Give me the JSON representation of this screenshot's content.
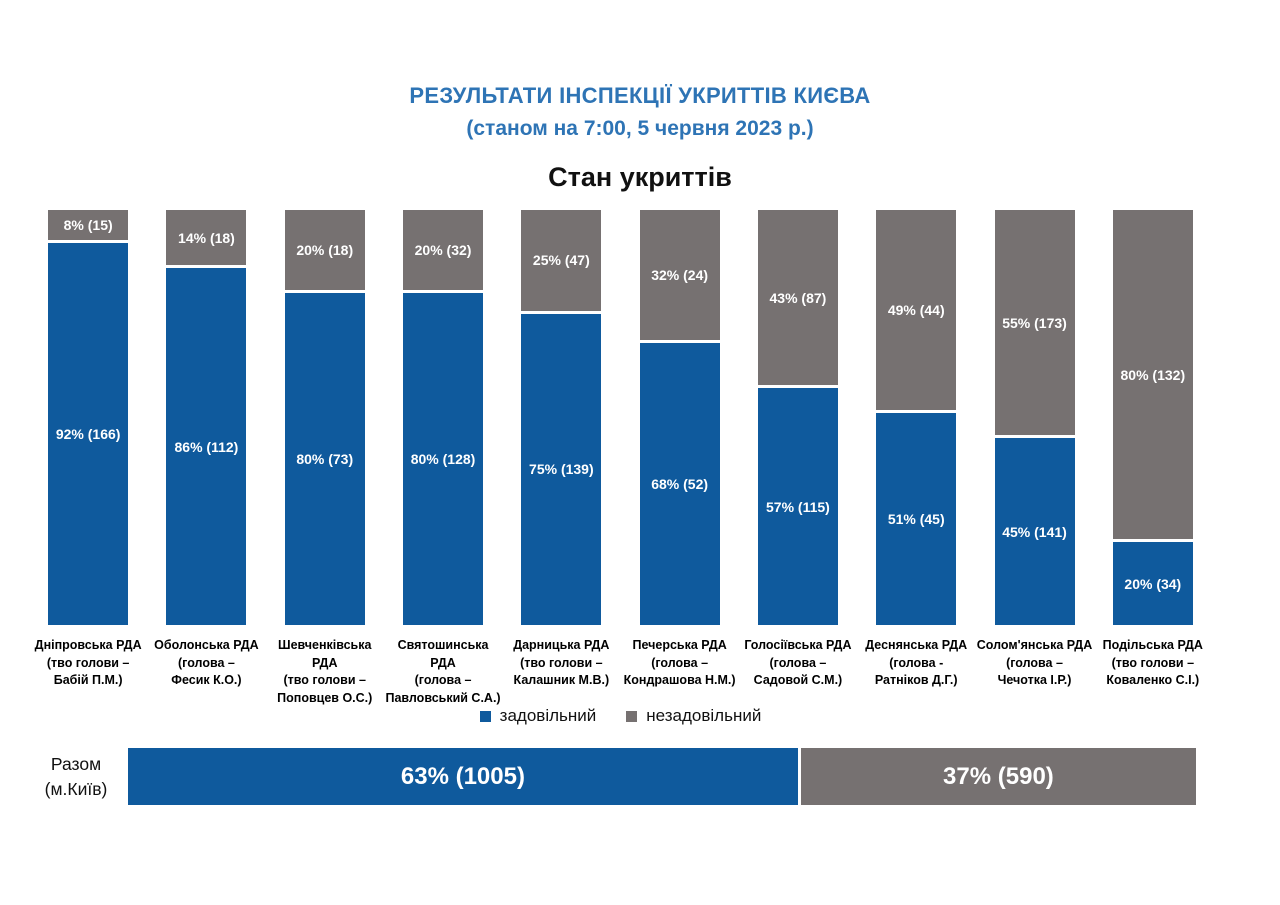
{
  "header": {
    "title": "РЕЗУЛЬТАТИ ІНСПЕКЦІЇ УКРИТТІВ КИЄВА",
    "subtitle": "(станом на 7:00, 5 червня 2023 р.)"
  },
  "chart_data": {
    "type": "bar",
    "variant": "100%-stacked-column",
    "title": "Стан укриттів",
    "grid": false,
    "ylim": [
      0,
      100
    ],
    "legend_position": "bottom",
    "legend": [
      {
        "label": "задовільний",
        "color": "#0F5A9D"
      },
      {
        "label": "незадовільний",
        "color": "#767171"
      }
    ],
    "categories": [
      "Дніпровська РДА",
      "Оболонська РДА",
      "Шевченківська РДА",
      "Святошинська РДА",
      "Дарницька РДА",
      "Печерська РДА",
      "Голосіївська РДА",
      "Деснянська РДА",
      "Солом'янська РДА",
      "Подільська РДА"
    ],
    "series": [
      {
        "name": "задовільний",
        "color": "#0F5A9D",
        "percents": [
          92,
          86,
          80,
          80,
          75,
          68,
          57,
          51,
          45,
          20
        ],
        "counts": [
          166,
          112,
          73,
          128,
          139,
          52,
          115,
          45,
          141,
          34
        ]
      },
      {
        "name": "незадовільний",
        "color": "#767171",
        "percents": [
          8,
          14,
          20,
          20,
          25,
          32,
          43,
          49,
          55,
          80
        ],
        "counts": [
          15,
          18,
          18,
          32,
          47,
          24,
          87,
          44,
          173,
          132
        ]
      }
    ],
    "bars": [
      {
        "district": "Дніпровська РДА",
        "head_line1": "(тво голови –",
        "head_line2": "Бабій П.М.)",
        "sat_pct": 92,
        "sat_label": "92% (166)",
        "unsat_pct": 8,
        "unsat_label": "8% (15)"
      },
      {
        "district": "Оболонська РДА",
        "head_line1": "(голова –",
        "head_line2": "Фесик К.О.)",
        "sat_pct": 86,
        "sat_label": "86% (112)",
        "unsat_pct": 14,
        "unsat_label": "14% (18)"
      },
      {
        "district": "Шевченківська РДА",
        "head_line1": "(тво голови –",
        "head_line2": "Поповцев О.С.)",
        "sat_pct": 80,
        "sat_label": "80% (73)",
        "unsat_pct": 20,
        "unsat_label": "20% (18)"
      },
      {
        "district": "Святошинська РДА",
        "head_line1": "(голова –",
        "head_line2": "Павловський С.А.)",
        "sat_pct": 80,
        "sat_label": "80% (128)",
        "unsat_pct": 20,
        "unsat_label": "20% (32)"
      },
      {
        "district": "Дарницька РДА",
        "head_line1": "(тво голови –",
        "head_line2": "Калашник М.В.)",
        "sat_pct": 75,
        "sat_label": "75% (139)",
        "unsat_pct": 25,
        "unsat_label": "25% (47)"
      },
      {
        "district": "Печерська РДА",
        "head_line1": "(голова –",
        "head_line2": "Кондрашова Н.М.)",
        "sat_pct": 68,
        "sat_label": "68% (52)",
        "unsat_pct": 32,
        "unsat_label": "32% (24)"
      },
      {
        "district": "Голосіївська РДА",
        "head_line1": "(голова –",
        "head_line2": "Садовой С.М.)",
        "sat_pct": 57,
        "sat_label": "57% (115)",
        "unsat_pct": 43,
        "unsat_label": "43% (87)"
      },
      {
        "district": "Деснянська РДА",
        "head_line1": "(голова -",
        "head_line2": "Ратніков Д.Г.)",
        "sat_pct": 51,
        "sat_label": "51% (45)",
        "unsat_pct": 49,
        "unsat_label": "49% (44)"
      },
      {
        "district": "Солом'янська РДА",
        "head_line1": "(голова –",
        "head_line2": "Чечотка І.Р.)",
        "sat_pct": 45,
        "sat_label": "45% (141)",
        "unsat_pct": 55,
        "unsat_label": "55% (173)"
      },
      {
        "district": "Подільська РДА",
        "head_line1": "(тво голови –",
        "head_line2": "Коваленко С.І.)",
        "sat_pct": 20,
        "sat_label": "20% (34)",
        "unsat_pct": 80,
        "unsat_label": "80% (132)"
      }
    ],
    "total": {
      "label_line1": "Разом",
      "label_line2": "(м.Київ)",
      "sat_pct": 63,
      "sat_label": "63% (1005)",
      "unsat_pct": 37,
      "unsat_label": "37% (590)"
    }
  }
}
